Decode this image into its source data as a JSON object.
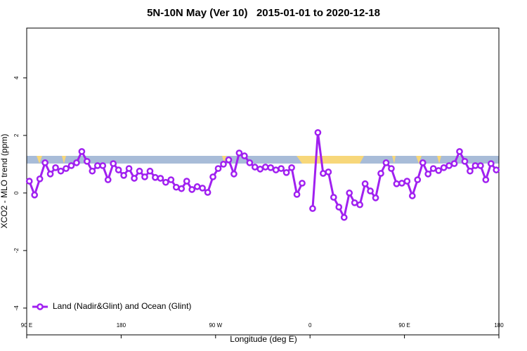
{
  "chart_data": {
    "type": "line",
    "title": "5N-10N May (Ver 10)   2015-01-01 to 2020-12-18",
    "xlabel": "Longitude (deg E)",
    "ylabel": "XCO2 - MLO trend (ppm)",
    "xlim": [
      90,
      540
    ],
    "xticks": [
      {
        "value": 90,
        "label": "90 E"
      },
      180,
      {
        "value": 270,
        "label": "90 W"
      },
      {
        "value": 360,
        "label": "0"
      },
      {
        "value": 450,
        "label": "90 E"
      },
      {
        "value": 540,
        "label": "180"
      }
    ],
    "ylim": [
      -4.93,
      5.73
    ],
    "yticks": [
      -4,
      -2,
      0,
      2,
      4
    ],
    "legend": "bottom-left",
    "x": [
      92.5,
      97.5,
      102.5,
      107.5,
      112.5,
      117.5,
      122.5,
      127.5,
      132.5,
      137.5,
      142.5,
      147.5,
      152.5,
      157.5,
      162.5,
      167.5,
      172.5,
      177.5,
      182.5,
      187.5,
      192.5,
      197.5,
      202.5,
      207.5,
      212.5,
      217.5,
      222.5,
      227.5,
      232.5,
      237.5,
      242.5,
      247.5,
      252.5,
      257.5,
      262.5,
      267.5,
      272.5,
      277.5,
      282.5,
      287.5,
      292.5,
      297.5,
      302.5,
      307.5,
      312.5,
      317.5,
      322.5,
      327.5,
      332.5,
      337.5,
      342.5,
      347.5,
      352.5,
      357.5,
      362.5,
      367.5,
      372.5,
      377.5,
      382.5,
      387.5,
      392.5,
      397.5,
      402.5,
      407.5,
      412.5,
      417.5,
      422.5,
      427.5,
      432.5,
      437.5,
      442.5,
      447.5,
      452.5,
      457.5,
      462.5,
      467.5,
      472.5,
      477.5,
      482.5,
      487.5,
      492.5,
      497.5,
      502.5,
      507.5,
      512.5,
      517.5,
      522.5,
      527.5,
      532.5,
      537.5
    ],
    "series": [
      {
        "name": "Land (Nadir&Glint) and Ocean (Glint)",
        "color": "#a020f0",
        "values": [
          0.41,
          -0.07,
          0.49,
          1.05,
          0.66,
          0.88,
          0.76,
          0.85,
          0.95,
          1.05,
          1.44,
          1.1,
          0.76,
          0.95,
          0.95,
          0.46,
          1.02,
          0.8,
          0.61,
          0.85,
          0.51,
          0.76,
          0.56,
          0.76,
          0.54,
          0.51,
          0.37,
          0.46,
          0.2,
          0.15,
          0.41,
          0.12,
          0.22,
          0.17,
          0.02,
          0.56,
          0.85,
          1.0,
          1.15,
          0.66,
          1.39,
          1.29,
          1.05,
          0.9,
          0.83,
          0.9,
          0.88,
          0.8,
          0.85,
          0.71,
          0.88,
          -0.05,
          0.34,
          null,
          -0.54,
          2.1,
          0.68,
          0.73,
          -0.15,
          -0.49,
          -0.85,
          0.0,
          -0.34,
          -0.41,
          0.32,
          0.07,
          -0.17,
          0.68,
          1.05,
          0.85,
          0.32,
          0.34,
          0.41,
          -0.1,
          0.46,
          1.05,
          0.66,
          0.85,
          0.78,
          0.88,
          0.95,
          1.02,
          1.44,
          1.1,
          0.76,
          0.95,
          0.95,
          0.46,
          1.02,
          0.8
        ]
      }
    ]
  }
}
